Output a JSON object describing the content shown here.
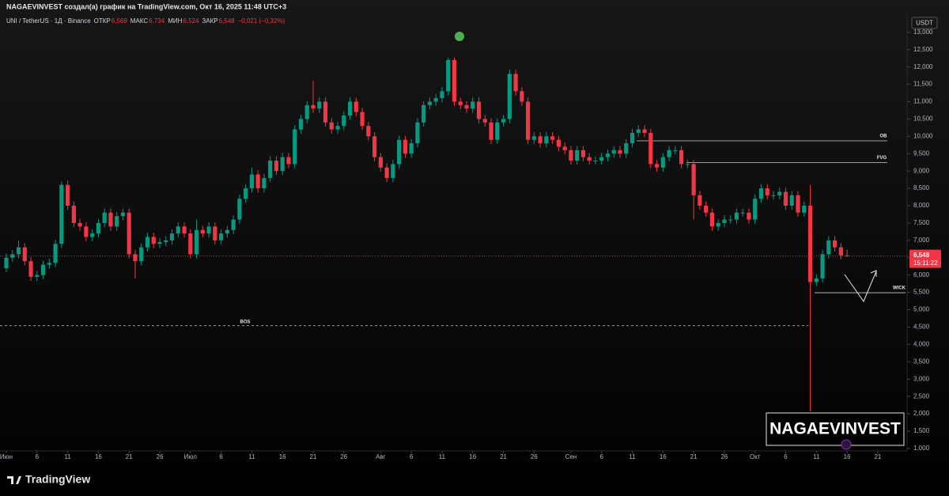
{
  "header": {
    "credit": "NAGAEVINVEST создал(а) график на TradingView.com, Окт 16, 2025 11:48 UTC+3",
    "currency": "USDT",
    "watermark": "NAGAEVINVEST",
    "brand": "TradingView"
  },
  "chart_data": {
    "type": "candlestick",
    "legend": {
      "symbol": "UNI / TetherUS · 1Д · Binance",
      "open_label": "ОТКР",
      "open": "6,569",
      "high_label": "МАКС",
      "high": "6,734",
      "low_label": "МИН",
      "low": "6,524",
      "close_label": "ЗАКР",
      "close": "6,548",
      "change": "−0,021 (−0,32%)"
    },
    "up_color": "#089981",
    "down_color": "#f23645",
    "x": [
      "06-01",
      "06-02",
      "06-03",
      "06-04",
      "06-05",
      "06-06",
      "06-07",
      "06-08",
      "06-09",
      "06-10",
      "06-11",
      "06-12",
      "06-13",
      "06-14",
      "06-15",
      "06-16",
      "06-17",
      "06-18",
      "06-19",
      "06-20",
      "06-21",
      "06-22",
      "06-23",
      "06-24",
      "06-25",
      "06-26",
      "06-27",
      "06-28",
      "06-29",
      "06-30",
      "07-01",
      "07-02",
      "07-03",
      "07-04",
      "07-05",
      "07-06",
      "07-07",
      "07-08",
      "07-09",
      "07-10",
      "07-11",
      "07-12",
      "07-13",
      "07-14",
      "07-15",
      "07-16",
      "07-17",
      "07-18",
      "07-19",
      "07-20",
      "07-21",
      "07-22",
      "07-23",
      "07-24",
      "07-25",
      "07-26",
      "07-27",
      "07-28",
      "07-29",
      "07-30",
      "07-31",
      "08-01",
      "08-02",
      "08-03",
      "08-04",
      "08-05",
      "08-06",
      "08-07",
      "08-08",
      "08-09",
      "08-10",
      "08-11",
      "08-12",
      "08-13",
      "08-14",
      "08-15",
      "08-16",
      "08-17",
      "08-18",
      "08-19",
      "08-20",
      "08-21",
      "08-22",
      "08-23",
      "08-24",
      "08-25",
      "08-26",
      "08-27",
      "08-28",
      "08-29",
      "08-30",
      "08-31",
      "09-01",
      "09-02",
      "09-03",
      "09-04",
      "09-05",
      "09-06",
      "09-07",
      "09-08",
      "09-09",
      "09-10",
      "09-11",
      "09-12",
      "09-13",
      "09-14",
      "09-15",
      "09-16",
      "09-17",
      "09-18",
      "09-19",
      "09-20",
      "09-21",
      "09-22",
      "09-23",
      "09-24",
      "09-25",
      "09-26",
      "09-27",
      "09-28",
      "09-29",
      "09-30",
      "10-01",
      "10-02",
      "10-03",
      "10-04",
      "10-05",
      "10-06",
      "10-07",
      "10-08",
      "10-09",
      "10-10",
      "10-11",
      "10-12",
      "10-13",
      "10-14",
      "10-15",
      "10-16"
    ],
    "open": [
      6.2,
      6.5,
      6.6,
      6.8,
      6.4,
      5.95,
      6.0,
      6.3,
      6.35,
      6.9,
      8.6,
      8.0,
      7.5,
      7.4,
      7.1,
      7.2,
      7.5,
      7.8,
      7.4,
      7.7,
      7.8,
      6.6,
      6.4,
      6.8,
      7.1,
      6.9,
      6.95,
      7.0,
      7.2,
      7.4,
      7.2,
      6.6,
      7.3,
      7.2,
      7.4,
      7.0,
      7.2,
      7.3,
      7.6,
      8.2,
      8.5,
      8.9,
      8.5,
      8.8,
      9.3,
      9.0,
      9.4,
      9.2,
      10.2,
      10.5,
      10.9,
      10.8,
      11.0,
      10.4,
      10.2,
      10.3,
      10.6,
      11.0,
      10.7,
      10.3,
      10.0,
      9.4,
      9.1,
      8.8,
      9.2,
      9.9,
      9.5,
      9.8,
      10.4,
      10.9,
      11.0,
      11.1,
      11.3,
      12.2,
      11.0,
      10.9,
      10.8,
      11.0,
      10.5,
      10.4,
      9.9,
      10.4,
      10.5,
      11.8,
      11.3,
      11.0,
      9.9,
      10.0,
      9.8,
      10.0,
      9.9,
      9.7,
      9.6,
      9.3,
      9.6,
      9.4,
      9.3,
      9.3,
      9.4,
      9.5,
      9.6,
      9.5,
      9.8,
      10.1,
      10.2,
      10.1,
      9.2,
      9.1,
      9.4,
      9.6,
      9.6,
      9.2,
      9.2,
      8.3,
      8.0,
      7.8,
      7.4,
      7.5,
      7.6,
      7.6,
      7.8,
      7.8,
      7.6,
      8.2,
      8.5,
      8.3,
      8.3,
      8.4,
      8.0,
      8.3,
      7.8,
      8.0,
      5.8,
      5.9,
      6.6,
      7.0,
      6.8,
      6.569
    ],
    "high": [
      6.62,
      6.72,
      7.0,
      6.92,
      6.52,
      6.12,
      6.42,
      6.47,
      7.02,
      8.7,
      8.72,
      8.12,
      7.62,
      7.52,
      7.32,
      7.62,
      7.92,
      7.92,
      7.82,
      7.92,
      7.92,
      6.72,
      6.92,
      7.22,
      7.22,
      7.07,
      7.12,
      7.32,
      7.52,
      7.52,
      7.32,
      7.6,
      7.42,
      7.52,
      7.52,
      7.32,
      7.42,
      7.72,
      8.32,
      8.62,
      9.1,
      9.02,
      8.92,
      9.42,
      9.42,
      9.52,
      9.52,
      10.32,
      10.62,
      11.02,
      11.6,
      11.12,
      11.12,
      10.52,
      10.42,
      10.72,
      11.12,
      11.12,
      10.82,
      10.42,
      10.12,
      9.52,
      9.22,
      9.32,
      10.02,
      10.02,
      9.92,
      10.52,
      11.02,
      11.12,
      11.22,
      11.42,
      12.27,
      12.27,
      11.12,
      11.02,
      11.12,
      11.12,
      10.62,
      10.52,
      10.52,
      10.62,
      11.92,
      11.92,
      11.42,
      11.12,
      10.12,
      10.12,
      10.12,
      10.12,
      10.02,
      9.82,
      9.72,
      9.72,
      9.72,
      9.52,
      9.42,
      9.52,
      9.62,
      9.72,
      9.72,
      9.92,
      10.22,
      10.32,
      10.32,
      10.22,
      9.32,
      9.52,
      9.72,
      9.72,
      9.72,
      9.32,
      9.32,
      8.42,
      8.12,
      7.92,
      7.62,
      7.72,
      7.72,
      7.92,
      7.92,
      7.92,
      8.32,
      8.62,
      8.62,
      8.42,
      8.52,
      8.52,
      8.42,
      8.42,
      8.12,
      8.6,
      6.02,
      6.72,
      7.12,
      7.12,
      6.92,
      6.734
    ],
    "low": [
      6.08,
      6.38,
      6.48,
      6.28,
      5.83,
      5.83,
      5.88,
      6.18,
      6.23,
      6.78,
      7.88,
      7.38,
      7.28,
      6.98,
      6.98,
      7.08,
      7.38,
      7.28,
      7.28,
      7.58,
      6.48,
      5.9,
      6.28,
      6.68,
      6.78,
      6.78,
      6.83,
      6.88,
      7.08,
      7.08,
      6.48,
      6.48,
      7.08,
      7.08,
      6.88,
      6.88,
      7.08,
      7.18,
      7.48,
      8.08,
      8.38,
      8.38,
      8.38,
      8.68,
      8.88,
      8.88,
      9.08,
      9.08,
      10.08,
      10.38,
      10.68,
      10.68,
      10.28,
      10.08,
      10.08,
      10.18,
      10.48,
      10.58,
      10.18,
      9.88,
      9.28,
      8.98,
      8.68,
      8.68,
      9.08,
      9.38,
      9.38,
      9.68,
      10.28,
      10.78,
      10.88,
      10.98,
      11.18,
      10.88,
      10.78,
      10.68,
      10.68,
      10.38,
      10.28,
      9.78,
      9.78,
      10.28,
      10.38,
      11.18,
      10.88,
      9.78,
      9.78,
      9.68,
      9.68,
      9.78,
      9.58,
      9.48,
      9.18,
      9.18,
      9.28,
      9.18,
      9.18,
      9.18,
      9.28,
      9.38,
      9.38,
      9.38,
      9.68,
      9.98,
      9.98,
      9.08,
      8.98,
      8.98,
      9.28,
      9.48,
      9.08,
      9.08,
      7.6,
      7.88,
      7.68,
      7.28,
      7.28,
      7.38,
      7.48,
      7.48,
      7.68,
      7.48,
      7.48,
      8.08,
      8.18,
      8.18,
      8.18,
      7.88,
      7.88,
      7.68,
      7.68,
      2.07,
      5.68,
      5.78,
      6.48,
      6.68,
      6.45,
      6.524
    ],
    "close": [
      6.5,
      6.6,
      6.8,
      6.4,
      5.95,
      6.0,
      6.3,
      6.35,
      6.9,
      8.6,
      8.0,
      7.5,
      7.4,
      7.1,
      7.2,
      7.5,
      7.8,
      7.4,
      7.7,
      7.8,
      6.6,
      6.4,
      6.8,
      7.1,
      6.9,
      6.95,
      7.0,
      7.2,
      7.4,
      7.2,
      6.6,
      7.3,
      7.2,
      7.4,
      7.0,
      7.2,
      7.3,
      7.6,
      8.2,
      8.5,
      8.9,
      8.5,
      8.8,
      9.3,
      9.0,
      9.4,
      9.2,
      10.2,
      10.5,
      10.9,
      10.8,
      11.0,
      10.4,
      10.2,
      10.3,
      10.6,
      11.0,
      10.7,
      10.3,
      10.0,
      9.4,
      9.1,
      8.8,
      9.2,
      9.9,
      9.5,
      9.8,
      10.4,
      10.9,
      11.0,
      11.1,
      11.3,
      12.2,
      11.0,
      10.9,
      10.8,
      11.0,
      10.5,
      10.4,
      9.9,
      10.4,
      10.5,
      11.8,
      11.3,
      11.0,
      9.9,
      10.0,
      9.8,
      10.0,
      9.9,
      9.7,
      9.6,
      9.3,
      9.6,
      9.4,
      9.3,
      9.3,
      9.4,
      9.5,
      9.6,
      9.5,
      9.8,
      10.1,
      10.2,
      10.1,
      9.2,
      9.1,
      9.4,
      9.6,
      9.6,
      9.2,
      9.2,
      8.3,
      8.0,
      7.8,
      7.4,
      7.5,
      7.6,
      7.6,
      7.8,
      7.8,
      7.6,
      8.2,
      8.5,
      8.3,
      8.3,
      8.4,
      8.0,
      8.3,
      7.8,
      8.0,
      5.8,
      5.9,
      6.6,
      7.0,
      6.8,
      6.569,
      6.548
    ],
    "ylim": [
      0.93,
      13.52
    ],
    "yticks": [
      {
        "value": 1,
        "label": "1,000"
      },
      {
        "value": 1.5,
        "label": "1,500"
      },
      {
        "value": 2,
        "label": "2,000"
      },
      {
        "value": 2.5,
        "label": "2,500"
      },
      {
        "value": 3,
        "label": "3,000"
      },
      {
        "value": 3.5,
        "label": "3,500"
      },
      {
        "value": 4,
        "label": "4,000"
      },
      {
        "value": 4.5,
        "label": "4,500"
      },
      {
        "value": 5,
        "label": "5,000"
      },
      {
        "value": 5.5,
        "label": "5,500"
      },
      {
        "value": 6,
        "label": "6,000"
      },
      {
        "value": 6.5,
        "label": "6,500"
      },
      {
        "value": 7,
        "label": "7,000"
      },
      {
        "value": 7.5,
        "label": "7,500"
      },
      {
        "value": 8,
        "label": "8,000"
      },
      {
        "value": 8.5,
        "label": "8,500"
      },
      {
        "value": 9,
        "label": "9,000"
      },
      {
        "value": 9.5,
        "label": "9,500"
      },
      {
        "value": 10,
        "label": "10,000"
      },
      {
        "value": 10.5,
        "label": "10,500"
      },
      {
        "value": 11,
        "label": "11,000"
      },
      {
        "value": 11.5,
        "label": "11,500"
      },
      {
        "value": 12,
        "label": "12,000"
      },
      {
        "value": 12.5,
        "label": "12,500"
      },
      {
        "value": 13,
        "label": "13,000"
      }
    ],
    "xticks": [
      {
        "value": "06-01",
        "label": "Июн"
      },
      {
        "value": "06-06",
        "label": "6"
      },
      {
        "value": "06-11",
        "label": "11"
      },
      {
        "value": "06-16",
        "label": "16"
      },
      {
        "value": "06-21",
        "label": "21"
      },
      {
        "value": "06-26",
        "label": "26"
      },
      {
        "value": "07-01",
        "label": "Июл"
      },
      {
        "value": "07-06",
        "label": "6"
      },
      {
        "value": "07-11",
        "label": "11"
      },
      {
        "value": "07-16",
        "label": "16"
      },
      {
        "value": "07-21",
        "label": "21"
      },
      {
        "value": "07-26",
        "label": "26"
      },
      {
        "value": "08-01",
        "label": "Авг"
      },
      {
        "value": "08-06",
        "label": "6"
      },
      {
        "value": "08-11",
        "label": "11"
      },
      {
        "value": "08-16",
        "label": "16"
      },
      {
        "value": "08-21",
        "label": "21"
      },
      {
        "value": "08-26",
        "label": "26"
      },
      {
        "value": "09-01",
        "label": "Сен"
      },
      {
        "value": "09-06",
        "label": "6"
      },
      {
        "value": "09-11",
        "label": "11"
      },
      {
        "value": "09-16",
        "label": "16"
      },
      {
        "value": "09-21",
        "label": "21"
      },
      {
        "value": "09-26",
        "label": "26"
      },
      {
        "value": "10-01",
        "label": "Окт"
      },
      {
        "value": "10-06",
        "label": "6"
      },
      {
        "value": "10-11",
        "label": "11"
      },
      {
        "value": "10-16",
        "label": "16"
      },
      {
        "value": "10-21",
        "label": "21"
      }
    ],
    "grid": false,
    "price_line": {
      "value": 6.548,
      "label": "6,548",
      "countdown": "15:11:22",
      "color": "#f23645"
    },
    "levels": [
      {
        "label": "OB",
        "value": 9.87
      },
      {
        "label": "FVG",
        "value": 9.24
      },
      {
        "label": "BOS",
        "value": 4.54
      },
      {
        "label": "WICK",
        "value": 5.49
      }
    ]
  }
}
